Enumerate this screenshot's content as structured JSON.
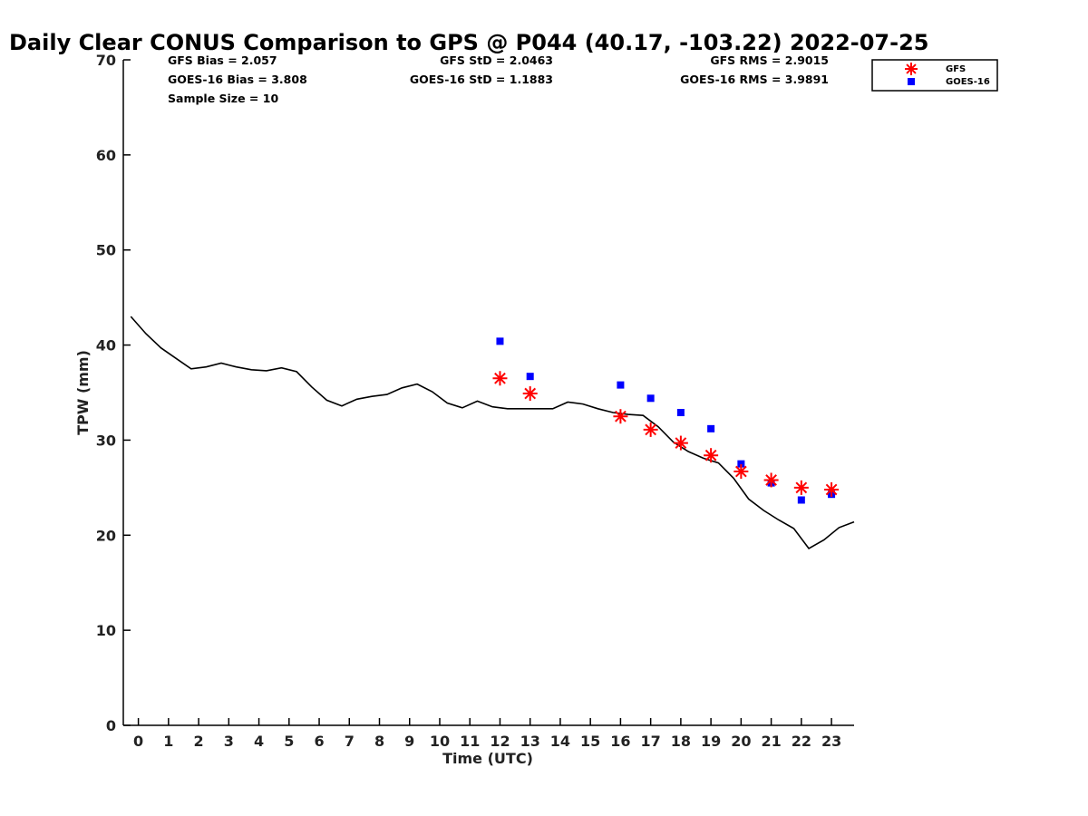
{
  "chart_data": {
    "type": "scatter",
    "title": "Daily Clear CONUS Comparison to GPS @ P044 (40.17, -103.22) 2022-07-25",
    "xlabel": "Time (UTC)",
    "ylabel": "TPW (mm)",
    "xlim": [
      -0.5,
      23.75
    ],
    "ylim": [
      0,
      70
    ],
    "x_ticks": [
      "0",
      "1",
      "2",
      "3",
      "4",
      "5",
      "6",
      "7",
      "8",
      "9",
      "10",
      "11",
      "12",
      "13",
      "14",
      "15",
      "16",
      "17",
      "18",
      "19",
      "20",
      "21",
      "22",
      "23"
    ],
    "y_ticks": [
      "0",
      "10",
      "20",
      "30",
      "40",
      "50",
      "60",
      "70"
    ],
    "grid": false,
    "legend_position": "top-right",
    "stats": {
      "gfs_bias": "GFS Bias = 2.057",
      "goes_bias": "GOES-16 Bias = 3.808",
      "sample_size": "Sample Size = 10",
      "gfs_std": "GFS StD = 2.0463",
      "goes_std": "GOES-16 StD = 1.1883",
      "gfs_rms": "GFS RMS = 2.9015",
      "goes_rms": "GOES-16 RMS = 3.9891"
    },
    "gps_line": {
      "color": "#000000",
      "x": [
        -0.25,
        0.25,
        0.75,
        1.25,
        1.75,
        2.25,
        2.75,
        3.25,
        3.75,
        4.25,
        4.75,
        5.25,
        5.75,
        6.25,
        6.75,
        7.25,
        7.75,
        8.25,
        8.75,
        9.25,
        9.75,
        10.25,
        10.75,
        11.25,
        11.75,
        12.25,
        12.75,
        13.25,
        13.75,
        14.25,
        14.75,
        15.25,
        15.75,
        16.25,
        16.75,
        17.25,
        17.75,
        18.25,
        18.75,
        19.25,
        19.75,
        20.25,
        20.75,
        21.25,
        21.75,
        22.25,
        22.75,
        23.25,
        23.75
      ],
      "y": [
        43.0,
        41.2,
        39.7,
        38.6,
        37.5,
        37.7,
        38.1,
        37.7,
        37.4,
        37.3,
        37.6,
        37.2,
        35.6,
        34.2,
        33.6,
        34.3,
        34.6,
        34.8,
        35.5,
        35.9,
        35.1,
        33.9,
        33.4,
        34.1,
        33.5,
        33.3,
        33.3,
        33.3,
        33.3,
        34.0,
        33.8,
        33.3,
        32.9,
        32.7,
        32.6,
        31.4,
        29.8,
        28.8,
        28.1,
        27.6,
        26.0,
        23.8,
        22.6,
        21.6,
        20.7,
        18.6,
        19.5,
        20.8,
        21.4
      ]
    },
    "series": [
      {
        "name": "GFS",
        "marker": "asterisk",
        "color": "#ff0000",
        "x": [
          12,
          13,
          16,
          17,
          18,
          19,
          20,
          21,
          22,
          23
        ],
        "y": [
          36.5,
          34.9,
          32.5,
          31.1,
          29.7,
          28.4,
          26.7,
          25.8,
          25.0,
          24.8
        ]
      },
      {
        "name": "GOES-16",
        "marker": "square",
        "color": "#0000ff",
        "x": [
          12,
          13,
          16,
          17,
          18,
          19,
          20,
          21,
          22,
          23
        ],
        "y": [
          40.4,
          36.7,
          35.8,
          34.4,
          32.9,
          31.2,
          27.5,
          25.5,
          23.7,
          24.3
        ]
      }
    ]
  }
}
